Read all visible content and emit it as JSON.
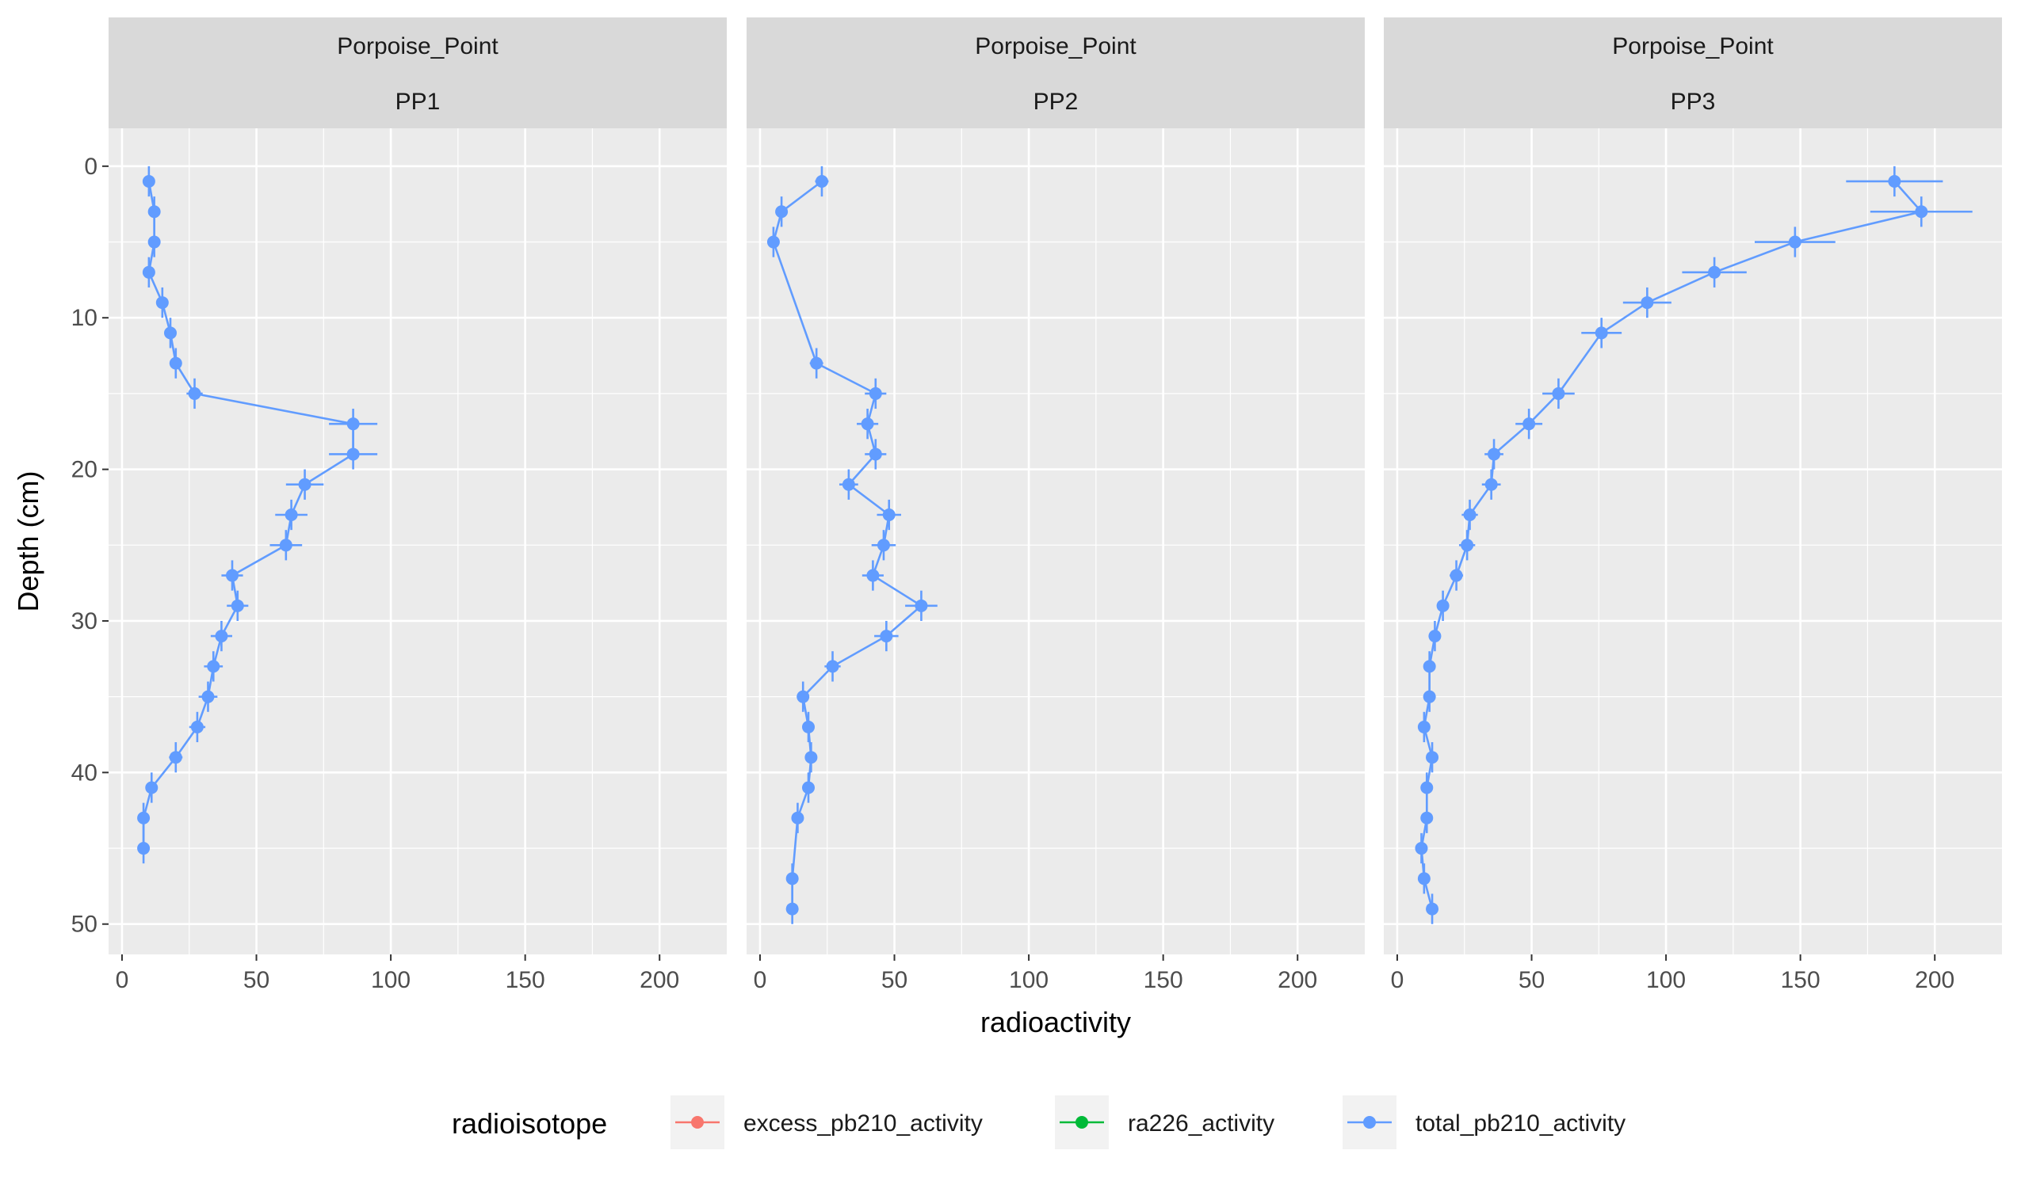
{
  "chart_data": {
    "type": "line",
    "facet_row_label": "Porpoise_Point",
    "xlabel": "radioactivity",
    "ylabel": "Depth (cm)",
    "xlim": [
      -5,
      225
    ],
    "ylim": [
      52,
      -2.5
    ],
    "y_reversed": true,
    "x_ticks": [
      0,
      50,
      100,
      150,
      200
    ],
    "y_ticks": [
      0,
      10,
      20,
      30,
      40,
      50
    ],
    "x_tick_labels": [
      "0",
      "50",
      "100",
      "150",
      "200"
    ],
    "y_tick_labels": [
      "0",
      "10",
      "20",
      "30",
      "40",
      "50"
    ],
    "grid": true,
    "legend": {
      "title": "radioisotope",
      "position": "bottom",
      "entries": [
        {
          "name": "excess_pb210_activity",
          "color": "#F8766D"
        },
        {
          "name": "ra226_activity",
          "color": "#00BA38"
        },
        {
          "name": "total_pb210_activity",
          "color": "#619CFF"
        }
      ]
    },
    "panels": [
      {
        "label": "PP1",
        "series": [
          {
            "name": "total_pb210_activity",
            "color": "#619CFF",
            "points": [
              {
                "x": 10,
                "y": 1,
                "xerr": 1.5,
                "yerr": 1
              },
              {
                "x": 12,
                "y": 3,
                "xerr": 1.5,
                "yerr": 1
              },
              {
                "x": 12,
                "y": 5,
                "xerr": 1.5,
                "yerr": 1
              },
              {
                "x": 10,
                "y": 7,
                "xerr": 1.5,
                "yerr": 1
              },
              {
                "x": 15,
                "y": 9,
                "xerr": 2,
                "yerr": 1
              },
              {
                "x": 18,
                "y": 11,
                "xerr": 2,
                "yerr": 1
              },
              {
                "x": 20,
                "y": 13,
                "xerr": 2,
                "yerr": 1
              },
              {
                "x": 27,
                "y": 15,
                "xerr": 3,
                "yerr": 1
              },
              {
                "x": 86,
                "y": 17,
                "xerr": 9,
                "yerr": 1
              },
              {
                "x": 86,
                "y": 19,
                "xerr": 9,
                "yerr": 1
              },
              {
                "x": 68,
                "y": 21,
                "xerr": 7,
                "yerr": 1
              },
              {
                "x": 63,
                "y": 23,
                "xerr": 6,
                "yerr": 1
              },
              {
                "x": 61,
                "y": 25,
                "xerr": 6,
                "yerr": 1
              },
              {
                "x": 41,
                "y": 27,
                "xerr": 4,
                "yerr": 1
              },
              {
                "x": 43,
                "y": 29,
                "xerr": 4,
                "yerr": 1
              },
              {
                "x": 37,
                "y": 31,
                "xerr": 4,
                "yerr": 1
              },
              {
                "x": 34,
                "y": 33,
                "xerr": 3.5,
                "yerr": 1
              },
              {
                "x": 32,
                "y": 35,
                "xerr": 3.5,
                "yerr": 1
              },
              {
                "x": 28,
                "y": 37,
                "xerr": 3,
                "yerr": 1
              },
              {
                "x": 20,
                "y": 39,
                "xerr": 2.5,
                "yerr": 1
              },
              {
                "x": 11,
                "y": 41,
                "xerr": 1.5,
                "yerr": 1
              },
              {
                "x": 8,
                "y": 43,
                "xerr": 1.5,
                "yerr": 1
              },
              {
                "x": 8,
                "y": 45,
                "xerr": 1.5,
                "yerr": 1
              }
            ]
          }
        ]
      },
      {
        "label": "PP2",
        "series": [
          {
            "name": "total_pb210_activity",
            "color": "#619CFF",
            "points": [
              {
                "x": 23,
                "y": 1,
                "xerr": 2.5,
                "yerr": 1
              },
              {
                "x": 8,
                "y": 3,
                "xerr": 1.5,
                "yerr": 1
              },
              {
                "x": 5,
                "y": 5,
                "xerr": 1.5,
                "yerr": 1
              },
              {
                "x": 21,
                "y": 13,
                "xerr": 2.5,
                "yerr": 1
              },
              {
                "x": 43,
                "y": 15,
                "xerr": 4,
                "yerr": 1
              },
              {
                "x": 40,
                "y": 17,
                "xerr": 4,
                "yerr": 1
              },
              {
                "x": 43,
                "y": 19,
                "xerr": 4,
                "yerr": 1
              },
              {
                "x": 33,
                "y": 21,
                "xerr": 3.5,
                "yerr": 1
              },
              {
                "x": 48,
                "y": 23,
                "xerr": 4.5,
                "yerr": 1
              },
              {
                "x": 46,
                "y": 25,
                "xerr": 4.5,
                "yerr": 1
              },
              {
                "x": 42,
                "y": 27,
                "xerr": 4,
                "yerr": 1
              },
              {
                "x": 60,
                "y": 29,
                "xerr": 6,
                "yerr": 1
              },
              {
                "x": 47,
                "y": 31,
                "xerr": 4.5,
                "yerr": 1
              },
              {
                "x": 27,
                "y": 33,
                "xerr": 3,
                "yerr": 1
              },
              {
                "x": 16,
                "y": 35,
                "xerr": 2,
                "yerr": 1
              },
              {
                "x": 18,
                "y": 37,
                "xerr": 2,
                "yerr": 1
              },
              {
                "x": 19,
                "y": 39,
                "xerr": 2,
                "yerr": 1
              },
              {
                "x": 18,
                "y": 41,
                "xerr": 2,
                "yerr": 1
              },
              {
                "x": 14,
                "y": 43,
                "xerr": 2,
                "yerr": 1
              },
              {
                "x": 12,
                "y": 47,
                "xerr": 1.5,
                "yerr": 1
              },
              {
                "x": 12,
                "y": 49,
                "xerr": 1.5,
                "yerr": 1
              }
            ]
          }
        ]
      },
      {
        "label": "PP3",
        "series": [
          {
            "name": "total_pb210_activity",
            "color": "#619CFF",
            "points": [
              {
                "x": 185,
                "y": 1,
                "xerr": 18,
                "yerr": 1
              },
              {
                "x": 195,
                "y": 3,
                "xerr": 19,
                "yerr": 1
              },
              {
                "x": 148,
                "y": 5,
                "xerr": 15,
                "yerr": 1
              },
              {
                "x": 118,
                "y": 7,
                "xerr": 12,
                "yerr": 1
              },
              {
                "x": 93,
                "y": 9,
                "xerr": 9,
                "yerr": 1
              },
              {
                "x": 76,
                "y": 11,
                "xerr": 7.5,
                "yerr": 1
              },
              {
                "x": 60,
                "y": 15,
                "xerr": 6,
                "yerr": 1
              },
              {
                "x": 49,
                "y": 17,
                "xerr": 5,
                "yerr": 1
              },
              {
                "x": 36,
                "y": 19,
                "xerr": 3.5,
                "yerr": 1
              },
              {
                "x": 35,
                "y": 21,
                "xerr": 3.5,
                "yerr": 1
              },
              {
                "x": 27,
                "y": 23,
                "xerr": 3,
                "yerr": 1
              },
              {
                "x": 26,
                "y": 25,
                "xerr": 3,
                "yerr": 1
              },
              {
                "x": 22,
                "y": 27,
                "xerr": 2.5,
                "yerr": 1
              },
              {
                "x": 17,
                "y": 29,
                "xerr": 2,
                "yerr": 1
              },
              {
                "x": 14,
                "y": 31,
                "xerr": 2,
                "yerr": 1
              },
              {
                "x": 12,
                "y": 33,
                "xerr": 1.5,
                "yerr": 1
              },
              {
                "x": 12,
                "y": 35,
                "xerr": 1.5,
                "yerr": 1
              },
              {
                "x": 10,
                "y": 37,
                "xerr": 1.5,
                "yerr": 1
              },
              {
                "x": 13,
                "y": 39,
                "xerr": 1.5,
                "yerr": 1
              },
              {
                "x": 11,
                "y": 41,
                "xerr": 1.5,
                "yerr": 1
              },
              {
                "x": 11,
                "y": 43,
                "xerr": 1.5,
                "yerr": 1
              },
              {
                "x": 9,
                "y": 45,
                "xerr": 1.5,
                "yerr": 1
              },
              {
                "x": 10,
                "y": 47,
                "xerr": 1.5,
                "yerr": 1
              },
              {
                "x": 13,
                "y": 49,
                "xerr": 1.5,
                "yerr": 1
              }
            ]
          }
        ]
      }
    ]
  }
}
